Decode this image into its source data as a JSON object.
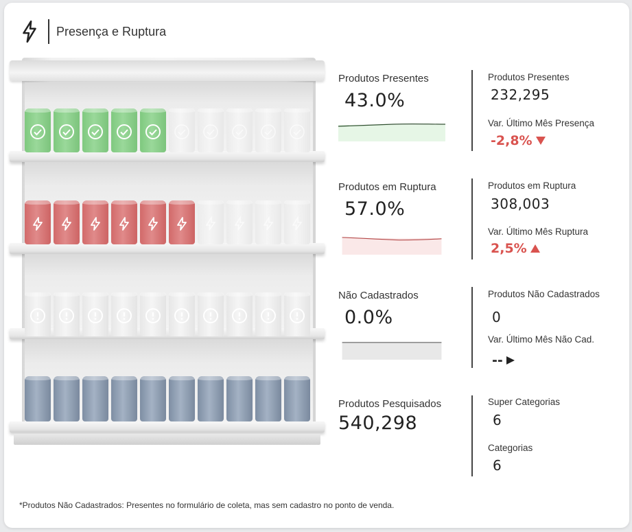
{
  "header": {
    "title": "Presença e Ruptura",
    "icon": "lightning-icon"
  },
  "metrics": {
    "presentes": {
      "label": "Produtos Presentes",
      "value": "43.0%"
    },
    "ruptura": {
      "label": "Produtos em Ruptura",
      "value": "57.0%"
    },
    "nao_cadastrados": {
      "label": "Não Cadastrados",
      "value": "0.0%"
    },
    "pesquisados": {
      "label": "Produtos Pesquisados",
      "value": "540,298"
    }
  },
  "details": {
    "presentes": {
      "count_label": "Produtos Presentes",
      "count": "232,295",
      "var_label": "Var. Último Mês Presença",
      "var_value": "-2,8%"
    },
    "ruptura": {
      "count_label": "Produtos em Ruptura",
      "count": "308,003",
      "var_label": "Var. Último Mês Ruptura",
      "var_value": "2,5%"
    },
    "nao_cadastrados": {
      "count_label": "Produtos Não Cadastrados",
      "count": "0",
      "var_label": "Var. Último Mês Não Cad.",
      "var_value": "--"
    },
    "categorias": {
      "super_label": "Super Categorias",
      "super_value": "6",
      "cat_label": "Categorias",
      "cat_value": "6"
    }
  },
  "colors": {
    "green": "#8ad18a",
    "red": "#d87070",
    "blue": "#8e9db1",
    "negative": "#d9534f"
  },
  "footnote": "*Produtos Não Cadastrados: Presentes no formulário de coleta, mas sem cadastro no ponto de venda."
}
